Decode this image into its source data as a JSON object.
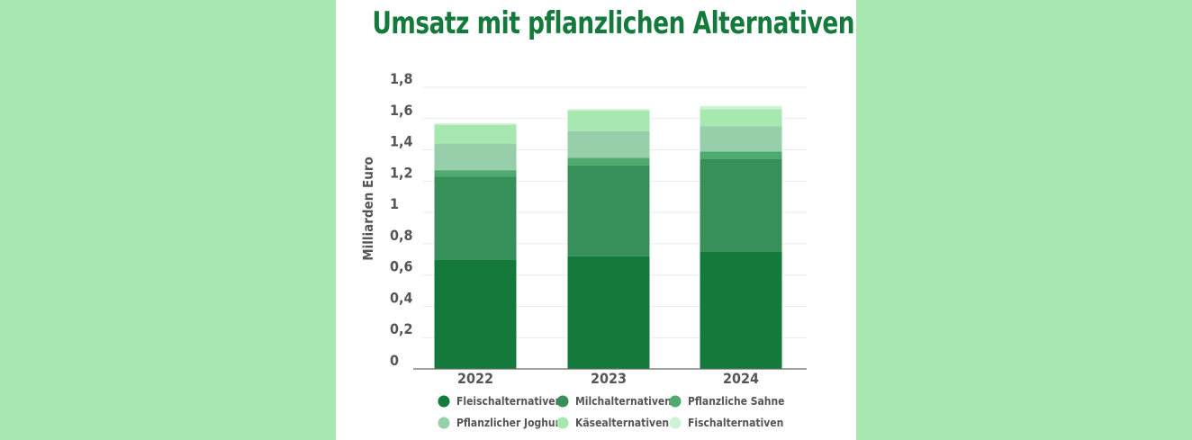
{
  "chart_data": {
    "type": "bar",
    "stacked": true,
    "title": "Umsatz mit pflanzlichen Alternativen",
    "ylabel": "Milliarden Euro",
    "xlabel": "",
    "categories": [
      "2022",
      "2023",
      "2024"
    ],
    "ylim": [
      0,
      1.8
    ],
    "yticks": [
      "0",
      "0,2",
      "0,4",
      "0,6",
      "0,8",
      "1",
      "1,2",
      "1,4",
      "1,6",
      "1,8"
    ],
    "ytick_values": [
      0,
      0.2,
      0.4,
      0.6,
      0.8,
      1.0,
      1.2,
      1.4,
      1.6,
      1.8
    ],
    "grid": true,
    "legend_position": "bottom",
    "series": [
      {
        "name": "Fleischalternativen",
        "color": "#137a3c",
        "values": [
          0.7,
          0.72,
          0.75
        ]
      },
      {
        "name": "Milchalternativen",
        "color": "#378f5a",
        "values": [
          0.53,
          0.58,
          0.59
        ]
      },
      {
        "name": "Pflanzliche Sahne",
        "color": "#4faa70",
        "values": [
          0.04,
          0.05,
          0.05
        ]
      },
      {
        "name": "Pflanzlicher Joghurt",
        "color": "#96cfaa",
        "values": [
          0.17,
          0.17,
          0.16
        ]
      },
      {
        "name": "Käsealternativen",
        "color": "#a6e8b0",
        "values": [
          0.12,
          0.13,
          0.11
        ]
      },
      {
        "name": "Fischalternativen",
        "color": "#cdf3d3",
        "values": [
          0.01,
          0.01,
          0.02
        ]
      }
    ]
  }
}
